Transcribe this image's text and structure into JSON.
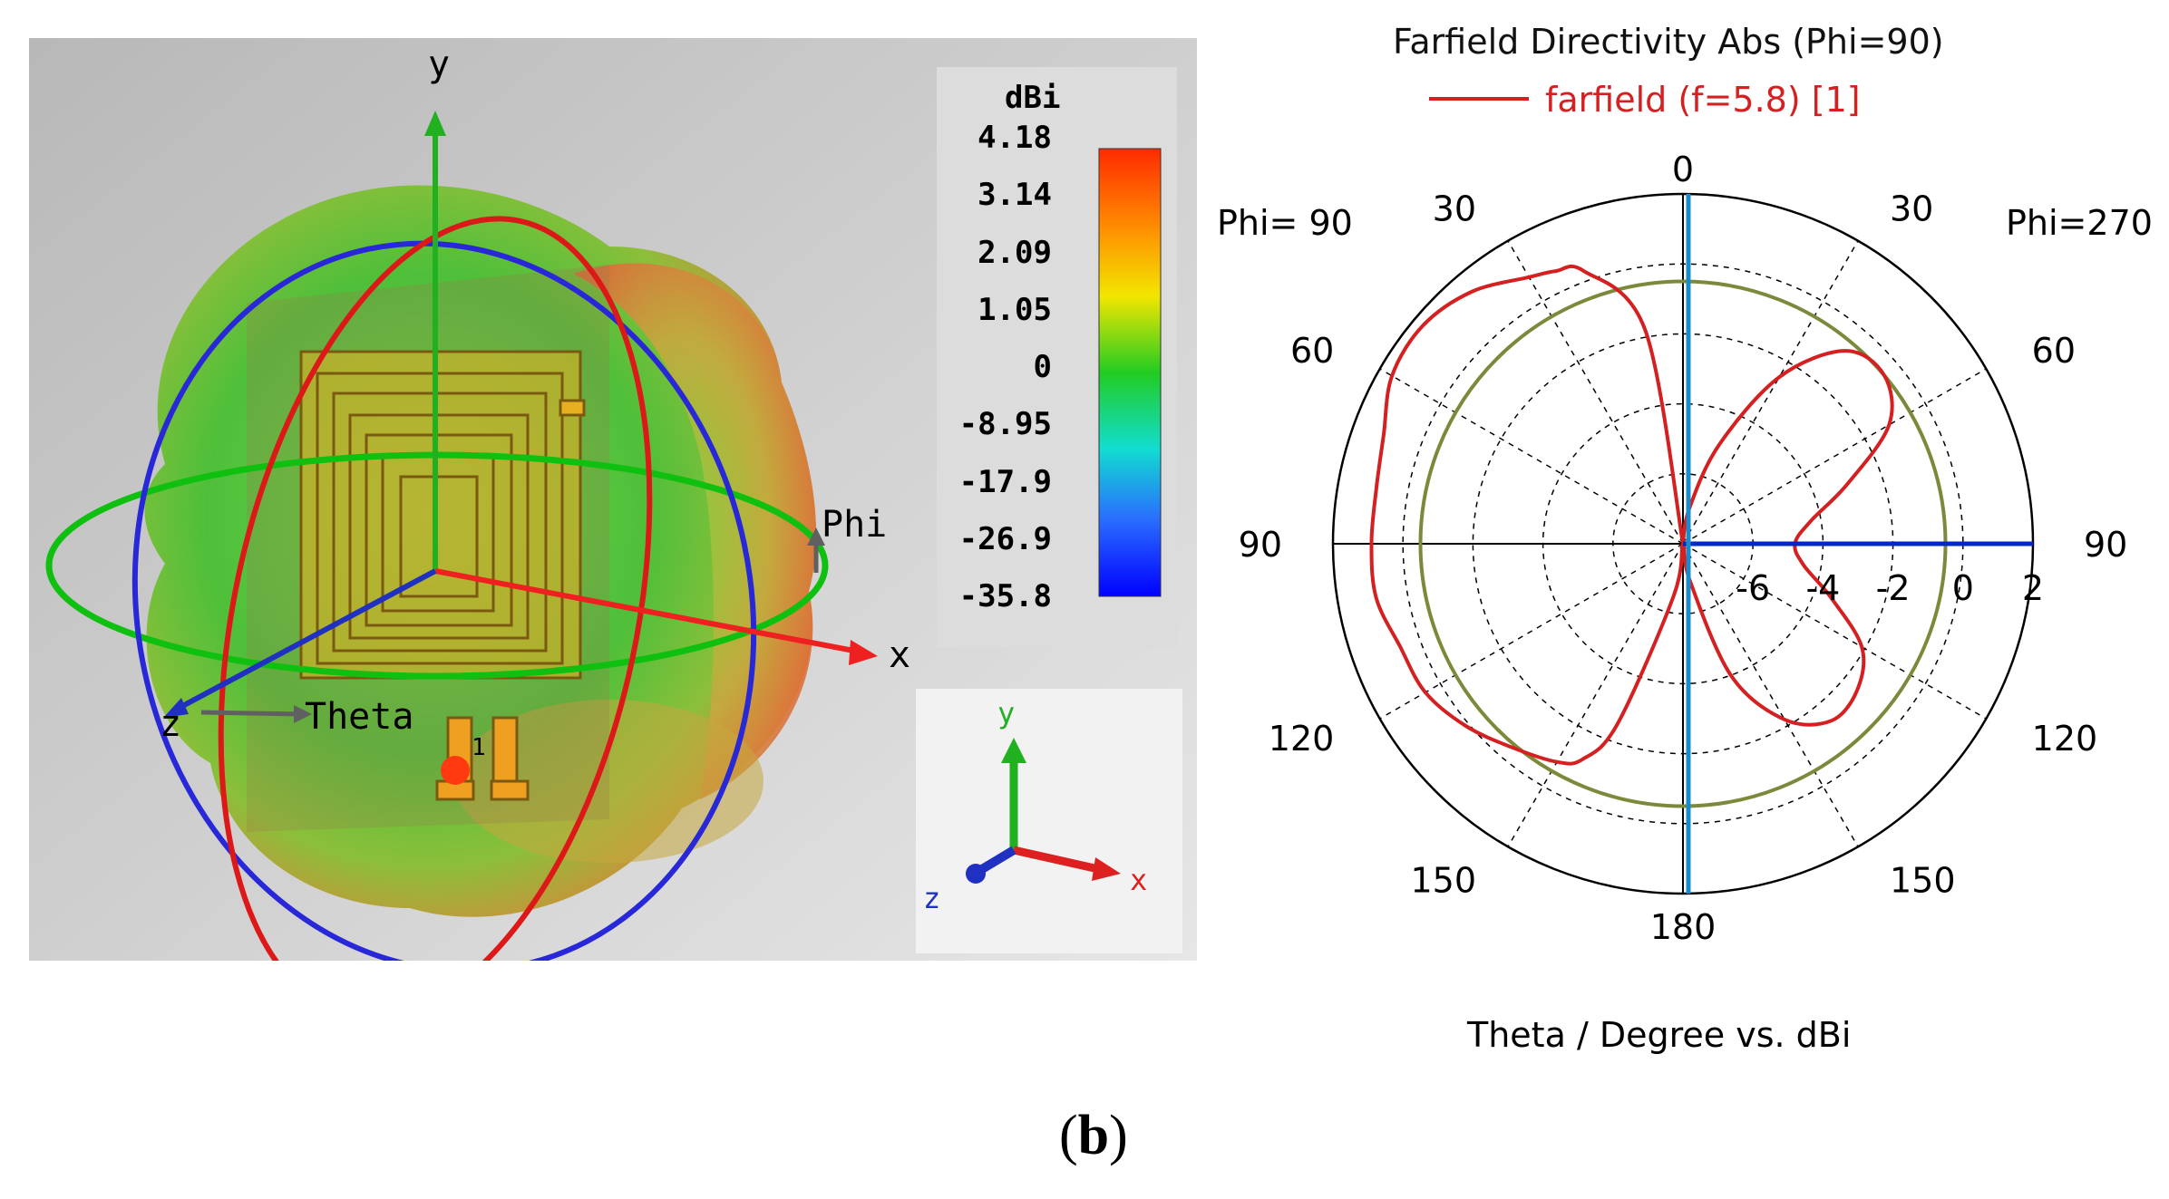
{
  "left_panel": {
    "axis_labels": {
      "y": "y",
      "x": "x",
      "z": "z",
      "phi": "Phi",
      "theta": "Theta",
      "port": "1"
    },
    "colorbar": {
      "unit": "dBi",
      "ticks": [
        "4.18",
        "3.14",
        "2.09",
        "1.05",
        "0",
        "-8.95",
        "-17.9",
        "-26.9",
        "-35.8"
      ],
      "colors": [
        "#ff2a00",
        "#ff8a00",
        "#f2e600",
        "#22cc22",
        "#11ddd0",
        "#2a6cff",
        "#0000ff"
      ]
    },
    "triad": {
      "x": "x",
      "y": "y",
      "z": "z"
    }
  },
  "chart_data": {
    "type": "polar",
    "title": "Farfield Directivity Abs (Phi=90)",
    "xlabel": "Theta / Degree vs. dBi",
    "legend": [
      {
        "name": "farfield (f=5.8) [1]",
        "color": "#d42020"
      }
    ],
    "side_labels": {
      "left": "Phi= 90",
      "right": "Phi=270"
    },
    "angle_labels": {
      "top": "0",
      "bottom": "180",
      "left": [
        "30",
        "60",
        "90",
        "120",
        "150"
      ],
      "right": [
        "30",
        "60",
        "90",
        "120",
        "150"
      ]
    },
    "radial_axis": {
      "min": -8,
      "max": 2,
      "ticks": [
        -6,
        -4,
        -2,
        0,
        2
      ],
      "labels": [
        "-6",
        "-4",
        "-2",
        "0",
        "2"
      ]
    },
    "reference_circle_db": -0.5,
    "reference_color": "#7a8a3a",
    "series": [
      {
        "name": "farfield (f=5.8) [1]",
        "theta_deg": [
          0,
          10,
          20,
          25,
          30,
          40,
          50,
          60,
          70,
          80,
          90,
          100,
          110,
          120,
          130,
          140,
          150,
          155,
          160,
          170,
          180,
          190,
          200,
          210,
          220,
          230,
          240,
          250,
          260,
          270,
          280,
          290,
          300,
          310,
          320,
          330,
          340,
          350,
          360
        ],
        "values_dbi": [
          -8,
          -1.8,
          0.3,
          0.6,
          0.8,
          1.4,
          1.7,
          1.6,
          1.1,
          0.9,
          0.9,
          0.9,
          0.6,
          0.5,
          0.1,
          -0.4,
          -0.8,
          -1.2,
          -2.5,
          -6.5,
          -8,
          -7,
          -4,
          -2.2,
          -1.4,
          -1.5,
          -2.1,
          -3.5,
          -4.5,
          -4.8,
          -4.3,
          -3.0,
          -1.2,
          -0.5,
          -0.8,
          -2.5,
          -5,
          -7,
          -8
        ]
      }
    ],
    "markers": [
      {
        "name": "main-lobe-direction",
        "theta_deg": 90,
        "color": "#0028c8"
      },
      {
        "name": "vertical-reference",
        "theta_deg": 0,
        "color": "#1a8ccc"
      }
    ]
  },
  "caption": "b"
}
